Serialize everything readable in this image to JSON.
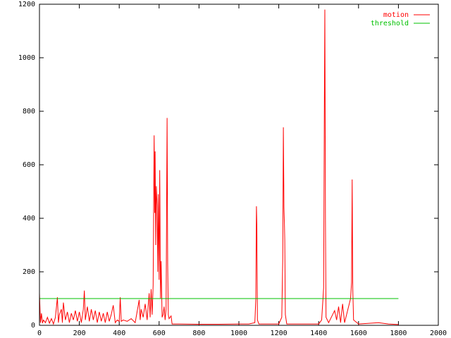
{
  "chart_data": {
    "type": "line",
    "xlim": [
      0,
      2000
    ],
    "xticks": [
      0,
      200,
      400,
      600,
      800,
      1000,
      1200,
      1400,
      1600,
      1800,
      2000
    ],
    "ylim": [
      0,
      1200
    ],
    "yticks": [
      0,
      200,
      400,
      600,
      800,
      1000,
      1200
    ],
    "legend": "top-right",
    "series": [
      {
        "name": "motion",
        "color": "#ff0000",
        "x": [
          0,
          5,
          10,
          15,
          20,
          30,
          40,
          50,
          60,
          70,
          80,
          90,
          95,
          100,
          110,
          115,
          120,
          130,
          140,
          150,
          160,
          170,
          180,
          190,
          200,
          210,
          220,
          225,
          230,
          240,
          250,
          260,
          270,
          280,
          290,
          300,
          310,
          320,
          330,
          340,
          350,
          360,
          370,
          380,
          390,
          400,
          405,
          410,
          420,
          440,
          460,
          480,
          500,
          505,
          510,
          520,
          530,
          540,
          550,
          555,
          560,
          565,
          570,
          575,
          578,
          580,
          583,
          586,
          590,
          593,
          596,
          600,
          603,
          607,
          610,
          615,
          620,
          625,
          630,
          635,
          640,
          643,
          646,
          650,
          660,
          665,
          700,
          800,
          900,
          1000,
          1050,
          1080,
          1085,
          1088,
          1090,
          1093,
          1100,
          1200,
          1215,
          1220,
          1223,
          1226,
          1228,
          1230,
          1233,
          1240,
          1300,
          1400,
          1415,
          1425,
          1428,
          1431,
          1434,
          1437,
          1450,
          1470,
          1480,
          1490,
          1500,
          1510,
          1520,
          1530,
          1560,
          1565,
          1568,
          1571,
          1575,
          1600,
          1700,
          1750,
          1800
        ],
        "values": [
          120,
          10,
          45,
          8,
          20,
          10,
          30,
          8,
          25,
          5,
          30,
          105,
          10,
          40,
          60,
          10,
          85,
          20,
          50,
          10,
          45,
          20,
          55,
          15,
          50,
          10,
          60,
          130,
          20,
          70,
          15,
          60,
          20,
          55,
          10,
          50,
          15,
          45,
          10,
          50,
          15,
          40,
          75,
          10,
          20,
          15,
          105,
          15,
          20,
          15,
          25,
          10,
          95,
          20,
          60,
          30,
          80,
          20,
          120,
          30,
          135,
          40,
          150,
          710,
          420,
          650,
          300,
          520,
          450,
          200,
          490,
          170,
          580,
          100,
          240,
          30,
          40,
          70,
          20,
          60,
          775,
          230,
          40,
          25,
          35,
          5,
          5,
          4,
          4,
          5,
          5,
          10,
          100,
          445,
          380,
          20,
          5,
          5,
          30,
          250,
          740,
          440,
          390,
          320,
          40,
          5,
          5,
          5,
          20,
          140,
          735,
          1180,
          400,
          30,
          10,
          40,
          55,
          20,
          70,
          10,
          80,
          10,
          100,
          160,
          545,
          140,
          20,
          5,
          10,
          5,
          3
        ]
      },
      {
        "name": "threshold",
        "color": "#00c000",
        "x": [
          0,
          1800
        ],
        "values": [
          100,
          100
        ]
      }
    ]
  }
}
